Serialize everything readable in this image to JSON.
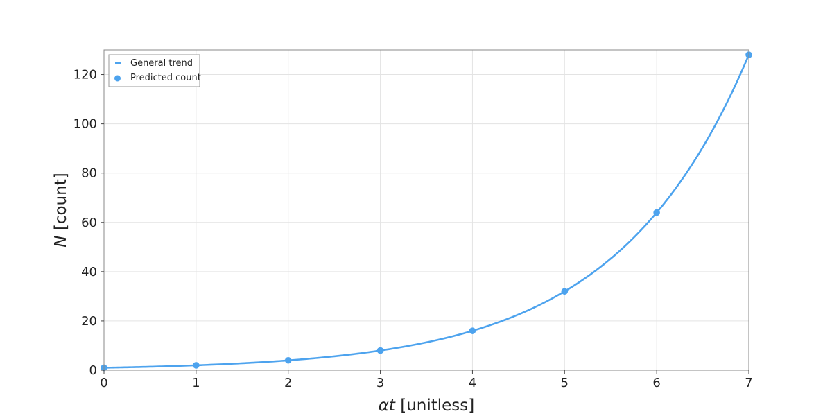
{
  "chart_data": {
    "type": "line",
    "title": "",
    "xlabel": {
      "symbol": "αt",
      "unit": "[unitless]"
    },
    "ylabel": {
      "symbol": "N",
      "unit": "[count]"
    },
    "xlim": [
      0,
      7
    ],
    "ylim": [
      0,
      130
    ],
    "xticks": [
      0,
      1,
      2,
      3,
      4,
      5,
      6,
      7
    ],
    "yticks": [
      0,
      20,
      40,
      60,
      80,
      100,
      120
    ],
    "grid": true,
    "legend_position": "top-left",
    "series": [
      {
        "name": "General trend",
        "kind": "line",
        "function": "N = 2^(αt)",
        "color": "#4da3ee"
      },
      {
        "name": "Predicted count",
        "kind": "scatter",
        "x": [
          0,
          1,
          2,
          3,
          4,
          5,
          6,
          7
        ],
        "y": [
          1,
          2,
          4,
          8,
          16,
          32,
          64,
          128
        ],
        "color": "#4da3ee"
      }
    ]
  }
}
